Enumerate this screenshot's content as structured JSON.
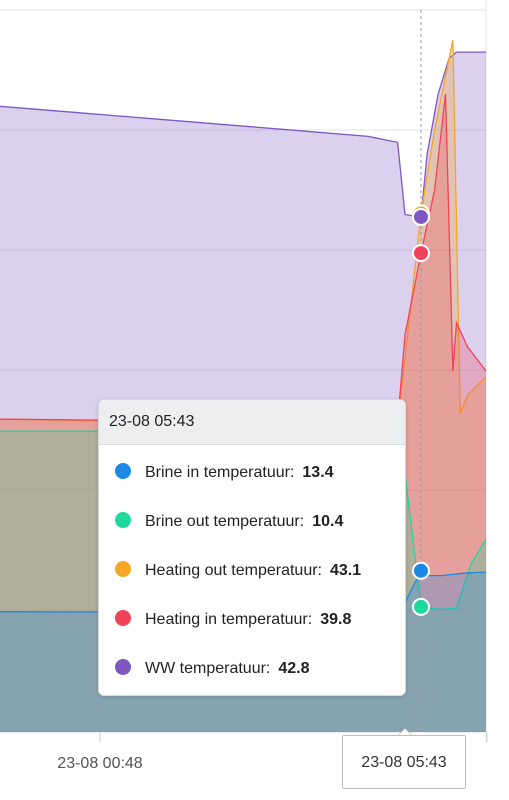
{
  "chart_data": {
    "type": "area",
    "title": "",
    "xlabel": "",
    "ylabel": "",
    "grid": true,
    "legend": "none",
    "x_tick_labels": [
      "23-08 00:48",
      "23-08 05:43"
    ],
    "ylim": [
      0,
      60
    ],
    "series": [
      {
        "name": "Brine in temperatuur",
        "color": "#1e88e5",
        "x": [
          0.0,
          5.0,
          5.3,
          5.43,
          5.717,
          5.8,
          6.0,
          6.3,
          6.6
        ],
        "values": [
          10.0,
          9.9,
          9.9,
          9.9,
          13.4,
          13.0,
          13.0,
          13.2,
          13.3
        ]
      },
      {
        "name": "Brine out temperatuur",
        "color": "#1fd89c",
        "x": [
          0.0,
          5.0,
          5.3,
          5.43,
          5.717,
          5.8,
          6.0,
          6.2,
          6.4,
          6.6
        ],
        "values": [
          25.0,
          25.0,
          25.0,
          25.1,
          10.4,
          10.3,
          10.2,
          10.3,
          14.0,
          16.0
        ]
      },
      {
        "name": "Heating out temperatuur",
        "color": "#f5a623",
        "x": [
          0.0,
          5.0,
          5.4,
          5.717,
          5.9,
          6.15,
          6.25,
          6.35,
          6.6
        ],
        "values": [
          26.0,
          25.5,
          25.5,
          43.1,
          50.0,
          57.5,
          26.5,
          28.0,
          29.5
        ]
      },
      {
        "name": "Heating in temperatuur",
        "color": "#f0435a",
        "x": [
          0.0,
          5.0,
          5.4,
          5.5,
          5.717,
          5.9,
          6.05,
          6.15,
          6.2,
          6.35,
          6.6
        ],
        "values": [
          26.0,
          25.7,
          25.7,
          33.0,
          39.8,
          45.0,
          53.0,
          30.0,
          34.0,
          32.0,
          30.0
        ]
      },
      {
        "name": "WW temperatuur",
        "color": "#7e57c2",
        "x": [
          0.0,
          1.0,
          2.0,
          3.0,
          4.0,
          5.0,
          5.4,
          5.5,
          5.717,
          5.8,
          5.95,
          6.1,
          6.2,
          6.6
        ],
        "values": [
          52.0,
          51.5,
          51.0,
          50.5,
          50.0,
          49.5,
          49.0,
          43.0,
          42.8,
          48.0,
          53.0,
          56.0,
          56.5,
          56.5
        ]
      }
    ]
  },
  "tooltip": {
    "time": "23-08 05:43",
    "rows": [
      {
        "label": "Brine in temperatuur:",
        "value": "13.4",
        "color": "#1e88e5"
      },
      {
        "label": "Brine out temperatuur:",
        "value": "10.4",
        "color": "#1fd89c"
      },
      {
        "label": "Heating out temperatuur:",
        "value": "43.1",
        "color": "#f5a623"
      },
      {
        "label": "Heating in temperatuur:",
        "value": "39.8",
        "color": "#f0435a"
      },
      {
        "label": "WW temperatuur:",
        "value": "42.8",
        "color": "#7e57c2"
      }
    ]
  },
  "crosshair_label": "23-08 05:43"
}
